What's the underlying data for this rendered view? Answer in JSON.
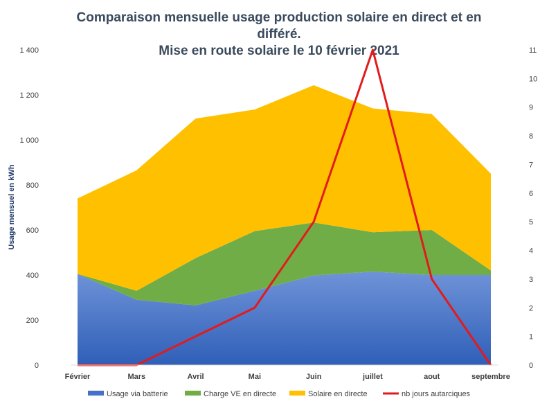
{
  "chart_data": {
    "type": "area",
    "title_lines": [
      "Comparaison  mensuelle usage production  solaire  en direct et en",
      "différé.",
      "Mise en route solaire  le 10 février 2021"
    ],
    "ylabel": "Usage  mensuel en kWh",
    "categories": [
      "Février",
      "Mars",
      "Avril",
      "Mai",
      "Juin",
      "juillet",
      "aout",
      "septembre"
    ],
    "ylim": [
      0,
      1400
    ],
    "y_ticks": [
      0,
      200,
      400,
      600,
      800,
      1000,
      1200,
      1400
    ],
    "y_tick_labels": [
      "0",
      "200",
      "400",
      "600",
      "800",
      "1 000",
      "1 200",
      "1 400"
    ],
    "y2lim": [
      0,
      11
    ],
    "y2_ticks": [
      0,
      1,
      2,
      3,
      4,
      5,
      6,
      7,
      8,
      9,
      10,
      11
    ],
    "y2_tick_labels": [
      "0",
      "1",
      "2",
      "3",
      "4",
      "5",
      "6",
      "7",
      "8",
      "9",
      "10",
      "11"
    ],
    "stacked": true,
    "series": [
      {
        "name": "Usage via batterie",
        "kind": "area",
        "axis": "left",
        "color": "#4472c4",
        "values": [
          405,
          290,
          265,
          330,
          398,
          415,
          400,
          400
        ]
      },
      {
        "name": "Charge VE en directe",
        "kind": "area",
        "axis": "left",
        "color": "#70ad47",
        "values": [
          0,
          40,
          210,
          265,
          235,
          175,
          200,
          20
        ]
      },
      {
        "name": "Solaire en directe",
        "kind": "area",
        "axis": "left",
        "color": "#ffc000",
        "values": [
          335,
          535,
          620,
          540,
          610,
          550,
          515,
          430
        ]
      },
      {
        "name": "nb jours autarciques",
        "kind": "line",
        "axis": "right",
        "color": "#e31a1c",
        "values": [
          0,
          0,
          1,
          2,
          5,
          11,
          3,
          0
        ]
      }
    ],
    "grid": false,
    "legend": "bottom"
  }
}
